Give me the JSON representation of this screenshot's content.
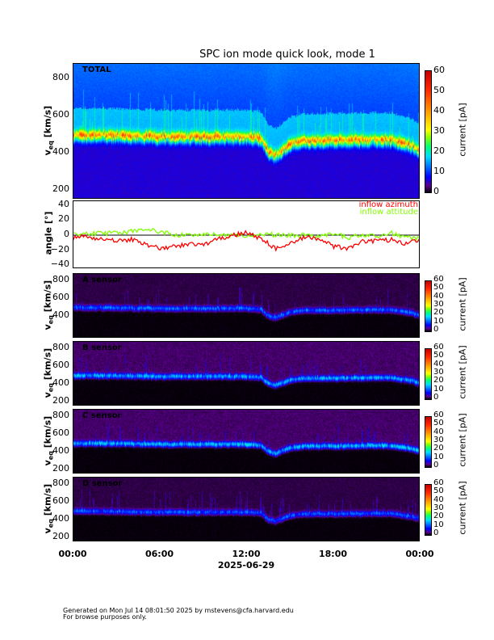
{
  "chart_data": {
    "type": "heatmap",
    "title": "SPC ion mode quick look, mode 1",
    "xlabel": "2025-06-29",
    "x_ticks": [
      "00:00",
      "06:00",
      "12:00",
      "18:00",
      "00:00"
    ],
    "x_range_hours": [
      0,
      24
    ],
    "colorbar": {
      "label": "current [pA]",
      "range": [
        0,
        60
      ],
      "ticks": [
        "0",
        "10",
        "20",
        "30",
        "40",
        "50",
        "60"
      ]
    },
    "panels": [
      {
        "name": "TOTAL",
        "label": "TOTAL",
        "ylabel": "v_eq [km/s]",
        "ylim": [
          150,
          880
        ],
        "ticks": [
          "200",
          "400",
          "600",
          "800"
        ],
        "band_peak_pA": 25,
        "background_pA": 9
      },
      {
        "name": "A sensor",
        "label": "A sensor",
        "ylabel": "v_eq [km/s]",
        "ylim": [
          150,
          870
        ],
        "ticks": [
          "400",
          "600",
          "800"
        ],
        "band_peak_pA": 10,
        "background_pA": 2
      },
      {
        "name": "B sensor",
        "label": "B sensor",
        "ylabel": "v_eq [km/s]",
        "ylim": [
          150,
          870
        ],
        "ticks": [
          "200",
          "400",
          "600",
          "800"
        ],
        "band_peak_pA": 12,
        "background_pA": 3
      },
      {
        "name": "C sensor",
        "label": "C sensor",
        "ylabel": "v_eq [km/s]",
        "ylim": [
          150,
          870
        ],
        "ticks": [
          "200",
          "400",
          "600",
          "800"
        ],
        "band_peak_pA": 13,
        "background_pA": 3
      },
      {
        "name": "D sensor",
        "label": "D sensor",
        "ylabel": "v_eq [km/s]",
        "ylim": [
          150,
          870
        ],
        "ticks": [
          "200",
          "400",
          "600",
          "800"
        ],
        "band_peak_pA": 9,
        "background_pA": 2
      }
    ],
    "band_center_kms": {
      "hours": [
        0,
        2,
        4,
        6,
        8,
        10,
        12,
        13,
        13.5,
        14,
        15,
        16,
        18,
        20,
        22,
        23.5,
        24
      ],
      "values": [
        490,
        490,
        485,
        480,
        480,
        480,
        480,
        470,
        400,
        380,
        440,
        460,
        460,
        465,
        465,
        430,
        400
      ]
    },
    "angle": {
      "ylabel": "angle [°]",
      "ylim": [
        -45,
        45
      ],
      "ticks": [
        "40",
        "20",
        "0",
        "−20",
        "−40"
      ],
      "hours": [
        0,
        1,
        2,
        3,
        4,
        5,
        6,
        7,
        8,
        9,
        10,
        11,
        12,
        13,
        14,
        15,
        16,
        17,
        18,
        19,
        20,
        21,
        22,
        23,
        24
      ],
      "series": [
        {
          "name": "inflow azimuth",
          "color": "#ff0000",
          "values": [
            -3,
            -2,
            -5,
            -8,
            -6,
            -12,
            -17,
            -15,
            -12,
            -13,
            -5,
            0,
            3,
            -5,
            -18,
            -12,
            -2,
            -5,
            -15,
            -18,
            -8,
            -8,
            -6,
            -12,
            -5
          ]
        },
        {
          "name": "inflow attitude",
          "color": "#80ff00",
          "values": [
            0,
            3,
            2,
            3,
            5,
            8,
            5,
            0,
            0,
            2,
            0,
            0,
            0,
            2,
            0,
            0,
            0,
            -2,
            2,
            -3,
            0,
            -2,
            3,
            -3,
            -5
          ]
        }
      ]
    }
  },
  "footer": {
    "line1": "Generated on Mon Jul 14 08:01:50 2025 by mstevens@cfa.harvard.edu",
    "line2": "For browse purposes only."
  }
}
